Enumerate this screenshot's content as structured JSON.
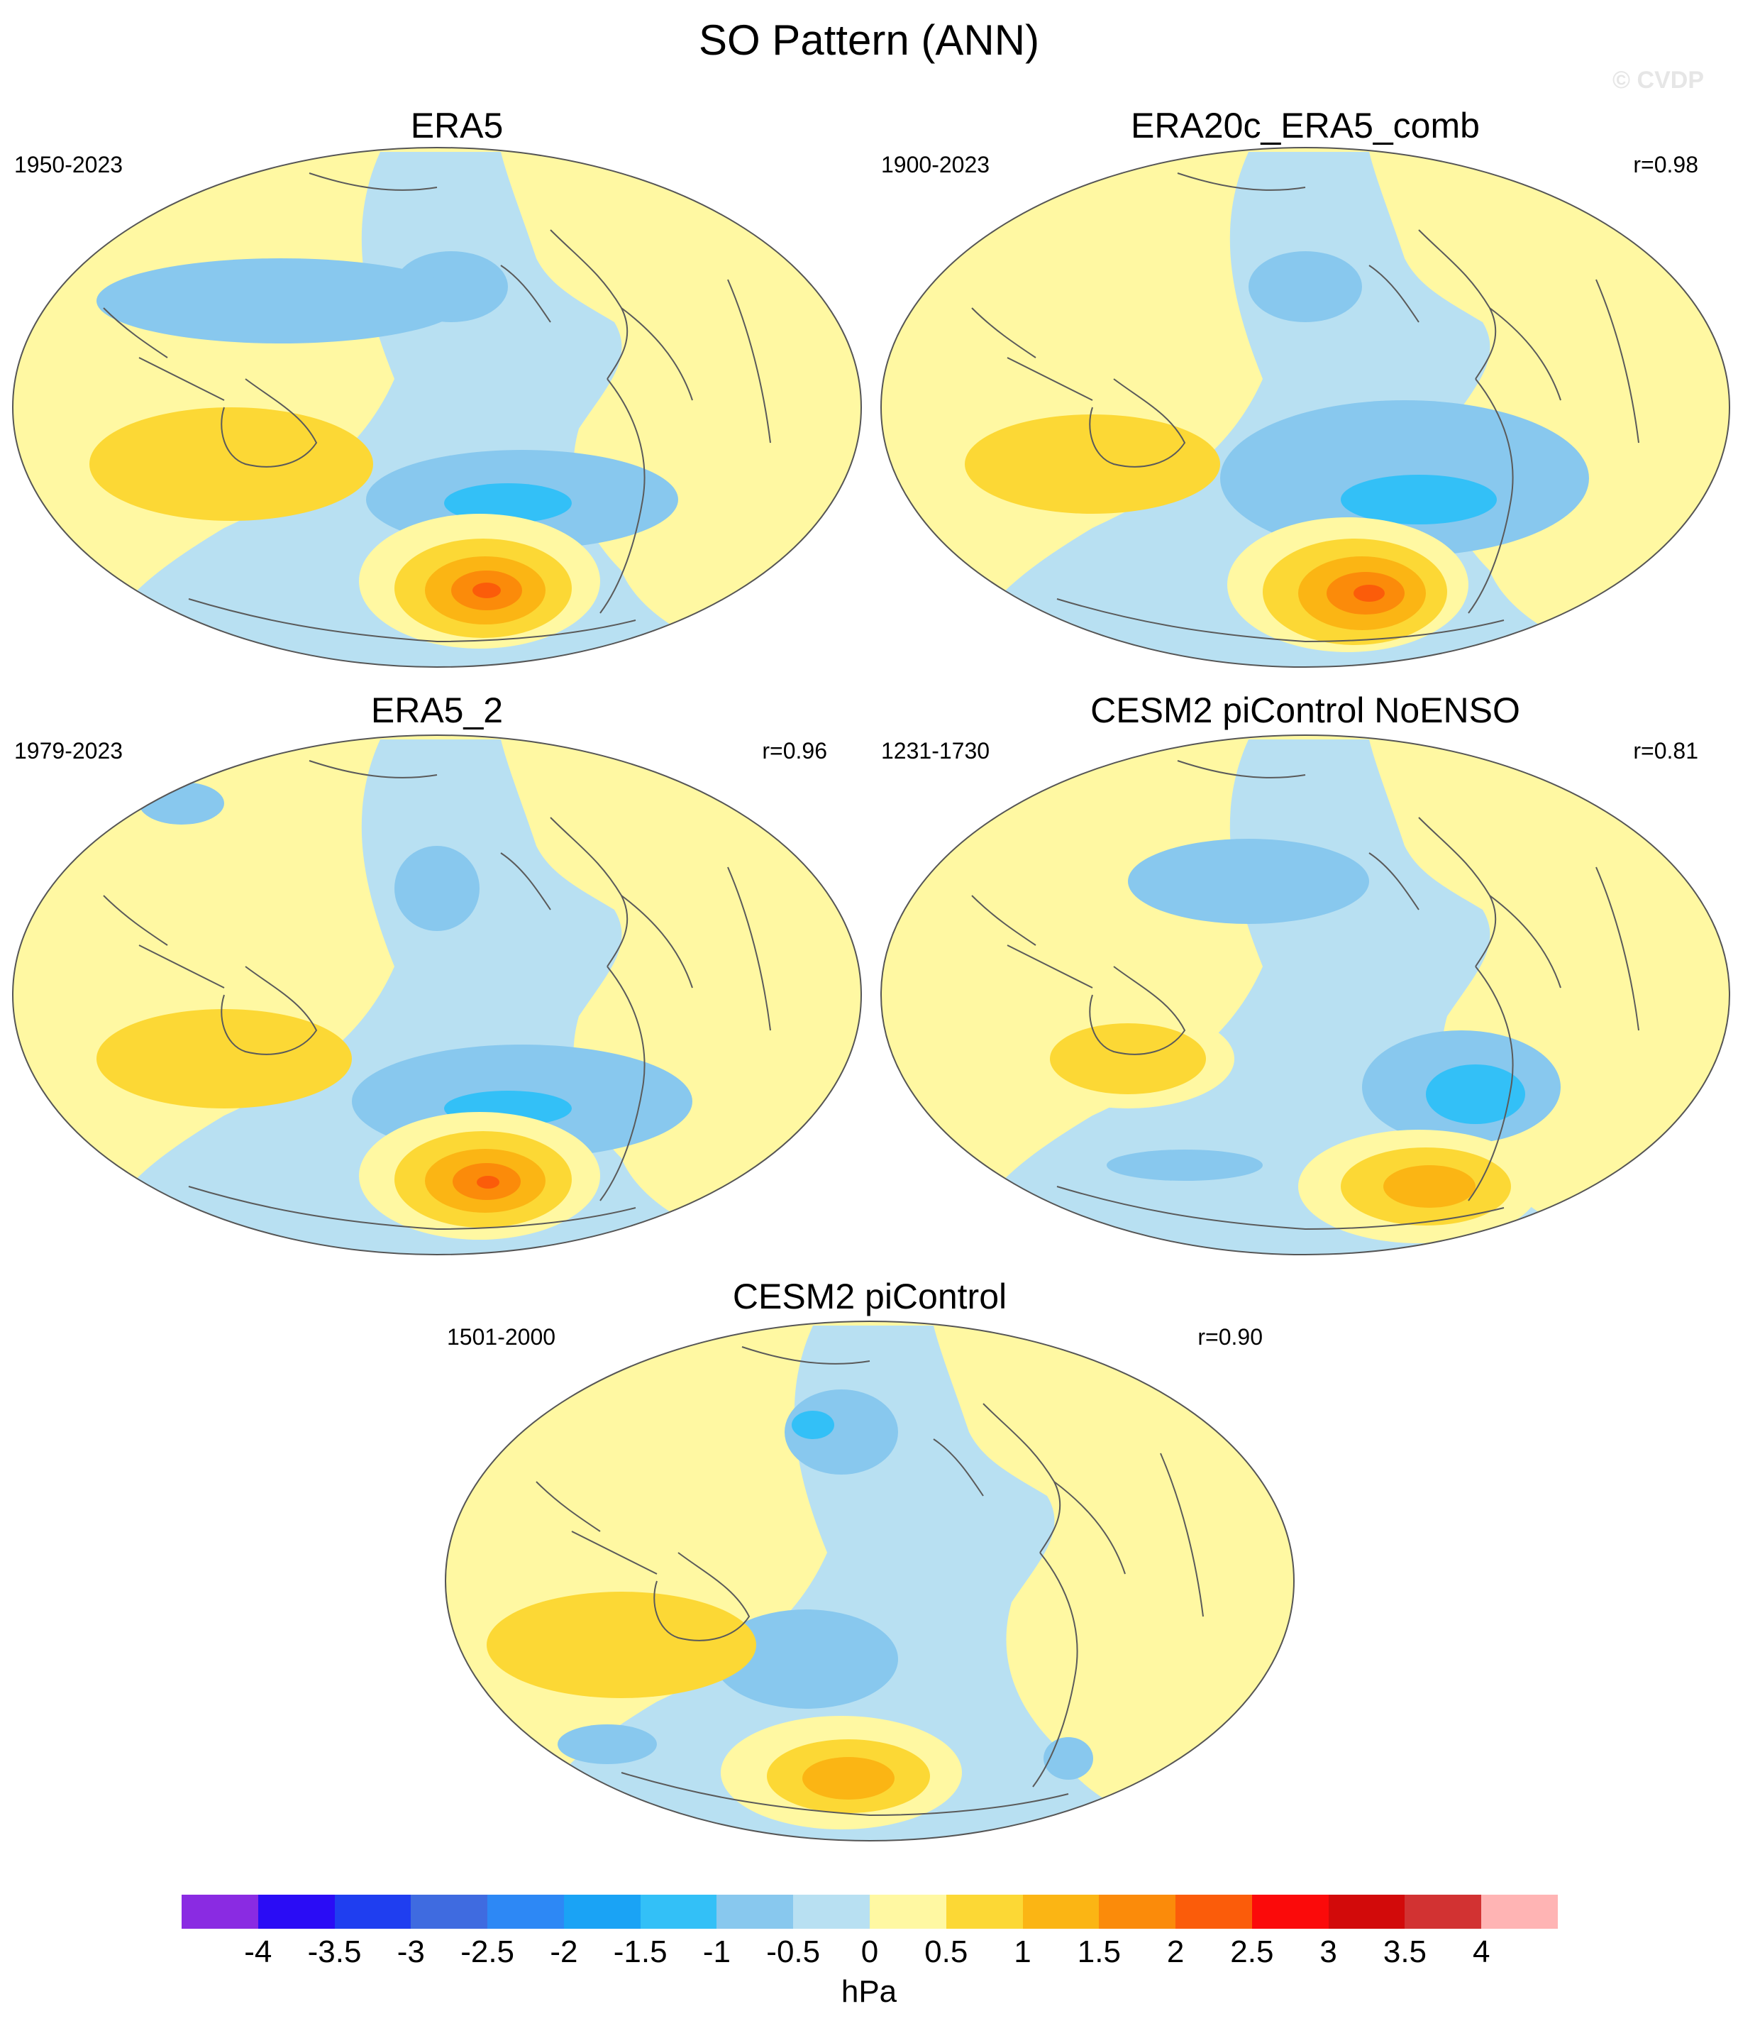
{
  "title": "SO Pattern (ANN)",
  "watermark": "© CVDP",
  "colors": {
    "land_line": "#5a5a5a",
    "levels": [
      "#8a2be2",
      "#2a0cf5",
      "#1f3ef0",
      "#3f6be0",
      "#2d88f5",
      "#1aa3f5",
      "#33c0f7",
      "#88c8ee",
      "#b8e0f2",
      "#fff8a2",
      "#fcd835",
      "#fbb514",
      "#fb8b0a",
      "#fb5c0a",
      "#fb0a0a",
      "#d20a0a",
      "#d23232",
      "#ffb4b4"
    ]
  },
  "panels": [
    {
      "title": "ERA5",
      "period": "1950-2023",
      "corr": ""
    },
    {
      "title": "ERA20c_ERA5_comb",
      "period": "1900-2023",
      "corr": "r=0.98"
    },
    {
      "title": "ERA5_2",
      "period": "1979-2023",
      "corr": "r=0.96"
    },
    {
      "title": "CESM2 piControl NoENSO",
      "period": "1231-1730",
      "corr": "r=0.81"
    },
    {
      "title": "CESM2 piControl",
      "period": "1501-2000",
      "corr": "r=0.90"
    }
  ],
  "colorbar": {
    "labels": [
      "-4",
      "-3.5",
      "-3",
      "-2.5",
      "-2",
      "-1.5",
      "-1",
      "-0.5",
      "0",
      "0.5",
      "1",
      "1.5",
      "2",
      "2.5",
      "3",
      "3.5",
      "4"
    ],
    "units": "hPa"
  }
}
